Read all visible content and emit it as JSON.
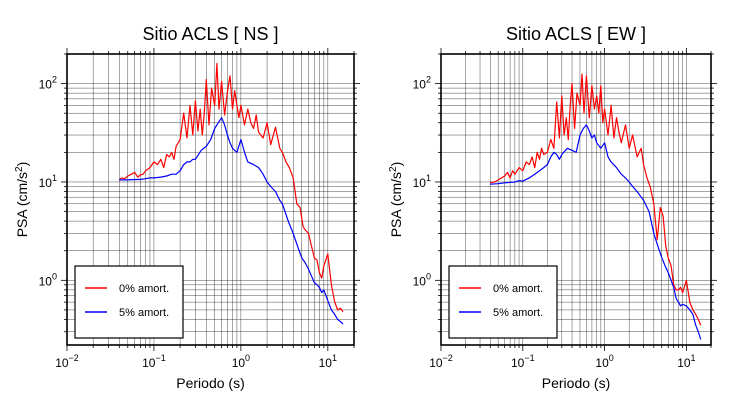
{
  "chart_data": [
    {
      "type": "line",
      "title": "Sitio ACLS [ NS ]",
      "xlabel": "Periodo (s)",
      "ylabel_main": "PSA (cm/s",
      "ylabel_sup": "2",
      "ylabel_close": ")",
      "x_scale": "log",
      "y_scale": "log",
      "xlim": [
        0.01,
        20
      ],
      "ylim": [
        0.22,
        200
      ],
      "x_ticks": [
        {
          "value": 0.01,
          "base": "10",
          "exp": "−2"
        },
        {
          "value": 0.1,
          "base": "10",
          "exp": "−1"
        },
        {
          "value": 1,
          "base": "10",
          "exp": "0"
        },
        {
          "value": 10,
          "base": "10",
          "exp": "1"
        }
      ],
      "y_ticks": [
        {
          "value": 1,
          "base": "10",
          "exp": "0"
        },
        {
          "value": 10,
          "base": "10",
          "exp": "1"
        },
        {
          "value": 100,
          "base": "10",
          "exp": "2"
        }
      ],
      "grid": true,
      "legend_position": "bottom-left",
      "series": [
        {
          "name": "0% amort.",
          "color": "#ff0000",
          "x": [
            0.04,
            0.043,
            0.046,
            0.05,
            0.055,
            0.06,
            0.065,
            0.07,
            0.075,
            0.08,
            0.09,
            0.1,
            0.11,
            0.12,
            0.13,
            0.14,
            0.15,
            0.16,
            0.17,
            0.18,
            0.2,
            0.22,
            0.24,
            0.26,
            0.28,
            0.3,
            0.32,
            0.34,
            0.36,
            0.38,
            0.4,
            0.43,
            0.46,
            0.5,
            0.53,
            0.56,
            0.6,
            0.65,
            0.7,
            0.75,
            0.8,
            0.85,
            0.9,
            0.95,
            1.0,
            1.1,
            1.2,
            1.3,
            1.4,
            1.5,
            1.6,
            1.8,
            2.0,
            2.2,
            2.5,
            2.8,
            3.0,
            3.3,
            3.6,
            4.0,
            4.4,
            4.8,
            5.2,
            5.6,
            6.0,
            6.5,
            7.0,
            7.5,
            8.0,
            8.5,
            9.0,
            10,
            11,
            12,
            13,
            14,
            15
          ],
          "y": [
            10.6,
            11,
            10.8,
            11.5,
            12,
            12.5,
            11.2,
            11.8,
            12,
            13,
            14,
            16,
            15,
            17,
            14,
            19,
            18,
            20,
            17,
            23,
            27,
            50,
            28,
            60,
            30,
            67,
            33,
            55,
            30,
            52,
            110,
            38,
            90,
            60,
            160,
            55,
            105,
            48,
            82,
            120,
            55,
            85,
            60,
            45,
            60,
            38,
            55,
            40,
            35,
            48,
            32,
            28,
            40,
            24,
            36,
            22,
            20,
            16,
            14,
            11,
            6,
            5.5,
            3.5,
            3.2,
            3,
            2.2,
            1.7,
            1.6,
            1.2,
            1.05,
            1.4,
            1.85,
            0.9,
            0.6,
            0.5,
            0.52,
            0.48
          ]
        },
        {
          "name": "5% amort.",
          "color": "#0000ff",
          "x": [
            0.04,
            0.05,
            0.06,
            0.07,
            0.08,
            0.09,
            0.1,
            0.12,
            0.14,
            0.16,
            0.18,
            0.2,
            0.22,
            0.24,
            0.26,
            0.28,
            0.3,
            0.35,
            0.4,
            0.45,
            0.5,
            0.55,
            0.6,
            0.65,
            0.7,
            0.75,
            0.8,
            0.9,
            1.0,
            1.1,
            1.2,
            1.4,
            1.6,
            1.8,
            2.0,
            2.2,
            2.5,
            2.8,
            3.0,
            3.5,
            4.0,
            4.5,
            5.0,
            5.5,
            6.0,
            6.5,
            7.0,
            7.5,
            8.0,
            8.5,
            9.0,
            10,
            11,
            12,
            13,
            14,
            15
          ],
          "y": [
            10.5,
            10.5,
            10.6,
            10.6,
            10.8,
            11,
            11,
            11.2,
            11.5,
            12,
            12,
            13,
            15,
            16,
            16,
            17,
            17,
            21,
            23,
            27,
            35,
            40,
            45,
            38,
            30,
            25,
            22,
            20,
            27,
            20,
            16,
            15,
            14,
            12,
            10,
            9,
            8,
            6.5,
            6,
            4,
            3,
            2.2,
            1.7,
            1.5,
            1.3,
            1.1,
            0.95,
            0.9,
            0.85,
            0.75,
            0.8,
            0.62,
            0.5,
            0.45,
            0.4,
            0.38,
            0.36
          ]
        }
      ]
    },
    {
      "type": "line",
      "title": "Sitio ACLS [ EW ]",
      "xlabel": "Periodo (s)",
      "ylabel_main": "PSA (cm/s",
      "ylabel_sup": "2",
      "ylabel_close": ")",
      "x_scale": "log",
      "y_scale": "log",
      "xlim": [
        0.01,
        20
      ],
      "ylim": [
        0.22,
        200
      ],
      "x_ticks": [
        {
          "value": 0.01,
          "base": "10",
          "exp": "−2"
        },
        {
          "value": 0.1,
          "base": "10",
          "exp": "−1"
        },
        {
          "value": 1,
          "base": "10",
          "exp": "0"
        },
        {
          "value": 10,
          "base": "10",
          "exp": "1"
        }
      ],
      "y_ticks": [
        {
          "value": 1,
          "base": "10",
          "exp": "0"
        },
        {
          "value": 10,
          "base": "10",
          "exp": "1"
        },
        {
          "value": 100,
          "base": "10",
          "exp": "2"
        }
      ],
      "grid": true,
      "legend_position": "bottom-left",
      "series": [
        {
          "name": "0% amort.",
          "color": "#ff0000",
          "x": [
            0.04,
            0.045,
            0.05,
            0.055,
            0.06,
            0.065,
            0.07,
            0.075,
            0.08,
            0.09,
            0.1,
            0.11,
            0.12,
            0.13,
            0.14,
            0.15,
            0.16,
            0.17,
            0.18,
            0.2,
            0.22,
            0.24,
            0.26,
            0.28,
            0.3,
            0.32,
            0.34,
            0.36,
            0.38,
            0.4,
            0.43,
            0.46,
            0.5,
            0.53,
            0.56,
            0.6,
            0.65,
            0.7,
            0.75,
            0.8,
            0.85,
            0.9,
            0.95,
            1.0,
            1.1,
            1.2,
            1.3,
            1.4,
            1.5,
            1.6,
            1.8,
            2.0,
            2.2,
            2.5,
            2.8,
            3.0,
            3.3,
            3.6,
            4.0,
            4.4,
            4.8,
            5.2,
            5.6,
            6.0,
            6.5,
            7.0,
            7.5,
            8.0,
            8.5,
            9.0,
            10,
            11,
            12,
            13,
            14,
            15
          ],
          "y": [
            9.8,
            10,
            10.5,
            11,
            11.5,
            12.5,
            11,
            13,
            12,
            14,
            13,
            16,
            15,
            18,
            14,
            20,
            17,
            22,
            19,
            20,
            27,
            22,
            65,
            28,
            75,
            30,
            45,
            27,
            60,
            100,
            35,
            80,
            60,
            125,
            50,
            120,
            45,
            95,
            55,
            75,
            50,
            95,
            40,
            55,
            30,
            60,
            28,
            45,
            32,
            25,
            38,
            22,
            30,
            18,
            22,
            15,
            11,
            9,
            6,
            2.6,
            5.5,
            4.5,
            2.2,
            1.7,
            1.4,
            0.9,
            0.8,
            0.8,
            0.85,
            0.75,
            1.0,
            0.6,
            0.5,
            0.45,
            0.4,
            0.35
          ]
        },
        {
          "name": "5% amort.",
          "color": "#0000ff",
          "x": [
            0.04,
            0.05,
            0.06,
            0.07,
            0.08,
            0.09,
            0.1,
            0.12,
            0.14,
            0.16,
            0.18,
            0.2,
            0.22,
            0.24,
            0.26,
            0.28,
            0.3,
            0.35,
            0.4,
            0.45,
            0.5,
            0.55,
            0.6,
            0.65,
            0.7,
            0.75,
            0.8,
            0.9,
            1.0,
            1.1,
            1.2,
            1.4,
            1.6,
            1.8,
            2.0,
            2.2,
            2.5,
            2.8,
            3.0,
            3.5,
            4.0,
            4.5,
            5.0,
            5.5,
            6.0,
            6.5,
            7.0,
            7.5,
            8.0,
            8.5,
            9.0,
            10,
            11,
            12,
            13,
            14,
            15
          ],
          "y": [
            9.5,
            9.6,
            9.8,
            9.9,
            10,
            10.3,
            10.2,
            11,
            12,
            13,
            14,
            15,
            18,
            20,
            19,
            17,
            19,
            22,
            21,
            20,
            30,
            35,
            38,
            33,
            28,
            30,
            25,
            22,
            25,
            18,
            16,
            14,
            12,
            11,
            10,
            9,
            8,
            7,
            6.5,
            5,
            3,
            2.2,
            1.7,
            1.4,
            1.2,
            1.0,
            0.85,
            0.65,
            0.6,
            0.55,
            0.57,
            0.55,
            0.5,
            0.45,
            0.35,
            0.3,
            0.25
          ]
        }
      ]
    }
  ]
}
